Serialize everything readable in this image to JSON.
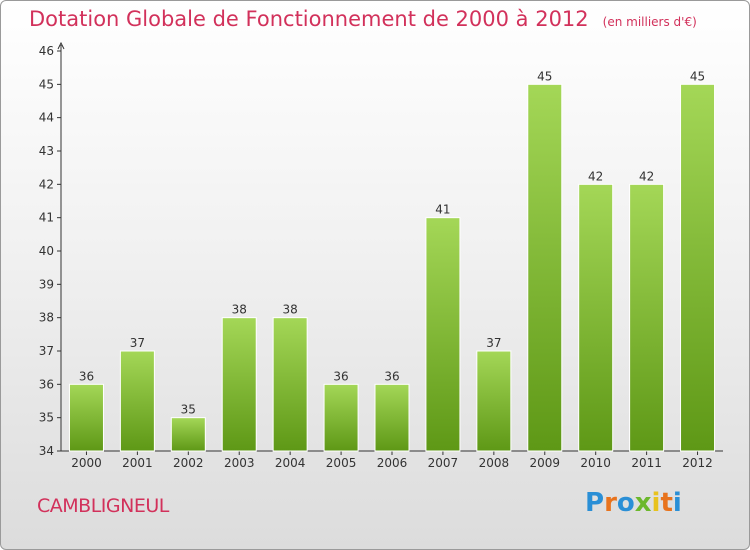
{
  "title": "Dotation Globale de Fonctionnement de 2000 à 2012",
  "unit_label": "(en milliers d'€)",
  "commune": "CAMBLIGNEUL",
  "logo": {
    "text": "Proxiti",
    "colors": [
      "#2a8fd6",
      "#e8731d",
      "#2a8fd6",
      "#6cb82c",
      "#e8c21d",
      "#e8731d",
      "#2a8fd6"
    ]
  },
  "colors": {
    "title": "#d2315b",
    "bar_top": "#a4d757",
    "bar_bottom": "#5e9816",
    "axis": "#333333"
  },
  "chart_data": {
    "type": "bar",
    "categories": [
      "2000",
      "2001",
      "2002",
      "2003",
      "2004",
      "2005",
      "2006",
      "2007",
      "2008",
      "2009",
      "2010",
      "2011",
      "2012"
    ],
    "values": [
      36,
      37,
      35,
      38,
      38,
      36,
      36,
      41,
      37,
      45,
      42,
      42,
      45
    ],
    "ylim": [
      34,
      46
    ],
    "yticks": [
      34,
      35,
      36,
      37,
      38,
      39,
      40,
      41,
      42,
      43,
      44,
      45,
      46
    ],
    "grid": false
  }
}
